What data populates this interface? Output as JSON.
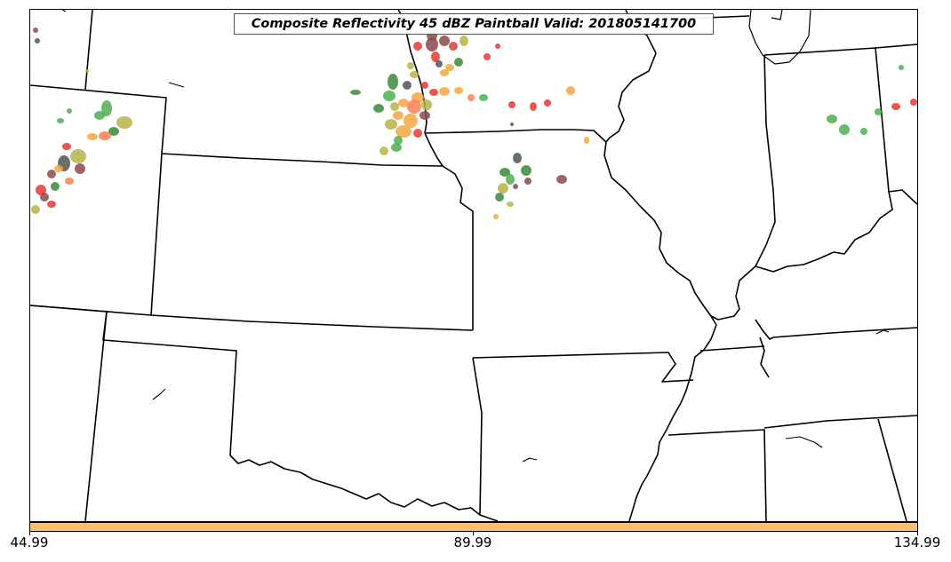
{
  "title": "Composite Reflectivity 45 dBZ Paintball Valid: 201805141700",
  "colorbar": {
    "color": "#fdc068",
    "ticks": [
      "44.99",
      "89.99",
      "134.99"
    ]
  },
  "paintball_colors": [
    "#e53935",
    "#f4a742",
    "#4caf50",
    "#3b8a3b",
    "#b5b548",
    "#8b4a4a",
    "#555555",
    "#ff7f50"
  ]
}
